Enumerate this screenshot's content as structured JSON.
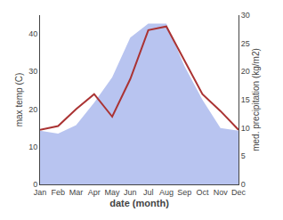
{
  "chart_data": {
    "type": "line",
    "categories": [
      "Jan",
      "Feb",
      "Mar",
      "Apr",
      "May",
      "Jun",
      "Jul",
      "Aug",
      "Sep",
      "Oct",
      "Nov",
      "Dec"
    ],
    "xlabel": "date (month)",
    "ylabel": "max temp (C)",
    "y2label": "med. precipitation (kg/m2)",
    "series": [
      {
        "type": "area",
        "axis": "y2",
        "color": "#b8c4f0",
        "values": [
          9.5,
          9.0,
          10.5,
          14.5,
          19.0,
          26.0,
          28.5,
          28.5,
          21.0,
          15.0,
          10.0,
          9.5
        ]
      },
      {
        "type": "line",
        "color": "#aa3333",
        "values": [
          14.5,
          15.5,
          20.0,
          24.0,
          18.0,
          28.0,
          41.0,
          42.0,
          33.0,
          24.0,
          19.5,
          14.5
        ]
      }
    ],
    "ylim": [
      0,
      45
    ],
    "yticks": [
      0,
      10,
      20,
      30,
      40
    ],
    "y2lim": [
      0,
      30
    ],
    "y2ticks": [
      0,
      5,
      10,
      15,
      20,
      25,
      30
    ],
    "grid": false
  }
}
